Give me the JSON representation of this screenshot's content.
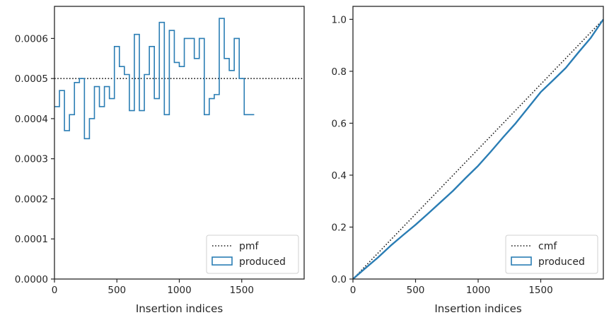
{
  "chart_data": [
    {
      "type": "step",
      "title": "",
      "xlabel": "Insertion indices",
      "ylabel": "",
      "xlim": [
        0,
        2000
      ],
      "ylim": [
        0,
        0.00068
      ],
      "xticks": [
        0,
        500,
        1000,
        1500
      ],
      "xtick_labels": [
        "0",
        "500",
        "1000",
        "1500"
      ],
      "yticks": [
        0,
        0.0001,
        0.0002,
        0.0003,
        0.0004,
        0.0005,
        0.0006
      ],
      "ytick_labels": [
        "0.0000",
        "0.0001",
        "0.0002",
        "0.0003",
        "0.0004",
        "0.0005",
        "0.0006"
      ],
      "grid": false,
      "legend_position": "lower right",
      "series": [
        {
          "name": "pmf",
          "kind": "line",
          "style": "dotted",
          "color": "#1a1a1a",
          "x": [
            0,
            2000
          ],
          "y": [
            0.0005,
            0.0005
          ]
        },
        {
          "name": "produced",
          "kind": "histogram-step",
          "color": "#2a7db4",
          "bin_width": 40,
          "bin_start": 0,
          "values": [
            0.00043,
            0.00047,
            0.00037,
            0.00041,
            0.00049,
            0.0005,
            0.00035,
            0.0004,
            0.00048,
            0.00043,
            0.00048,
            0.00045,
            0.00058,
            0.00053,
            0.00051,
            0.00042,
            0.00061,
            0.00042,
            0.00051,
            0.00058,
            0.00045,
            0.00064,
            0.00041,
            0.00062,
            0.00054,
            0.00053,
            0.0006,
            0.0006,
            0.00055,
            0.0006,
            0.00041,
            0.00045,
            0.00046,
            0.00065,
            0.00055,
            0.00052,
            0.0006,
            0.0005,
            0.00041,
            0.00041
          ]
        }
      ]
    },
    {
      "type": "step",
      "title": "",
      "xlabel": "Insertion indices",
      "ylabel": "",
      "xlim": [
        0,
        2000
      ],
      "ylim": [
        0,
        1.05
      ],
      "xticks": [
        0,
        500,
        1000,
        1500
      ],
      "xtick_labels": [
        "0",
        "500",
        "1000",
        "1500"
      ],
      "yticks": [
        0,
        0.2,
        0.4,
        0.6,
        0.8,
        1.0
      ],
      "ytick_labels": [
        "0.0",
        "0.2",
        "0.4",
        "0.6",
        "0.8",
        "1.0"
      ],
      "grid": false,
      "legend_position": "lower right",
      "series": [
        {
          "name": "cmf",
          "kind": "line",
          "style": "dotted",
          "color": "#1a1a1a",
          "x": [
            0,
            2000
          ],
          "y": [
            0,
            1.0
          ]
        },
        {
          "name": "produced",
          "kind": "cumulative-step",
          "color": "#2a7db4",
          "x": [
            0,
            100,
            200,
            300,
            400,
            500,
            600,
            700,
            800,
            900,
            1000,
            1100,
            1200,
            1300,
            1400,
            1500,
            1600,
            1700,
            1800,
            1900,
            2000
          ],
          "y": [
            0,
            0.042,
            0.083,
            0.128,
            0.169,
            0.209,
            0.252,
            0.296,
            0.34,
            0.389,
            0.436,
            0.49,
            0.546,
            0.6,
            0.66,
            0.72,
            0.766,
            0.813,
            0.872,
            0.929,
            1.0
          ]
        }
      ]
    }
  ]
}
